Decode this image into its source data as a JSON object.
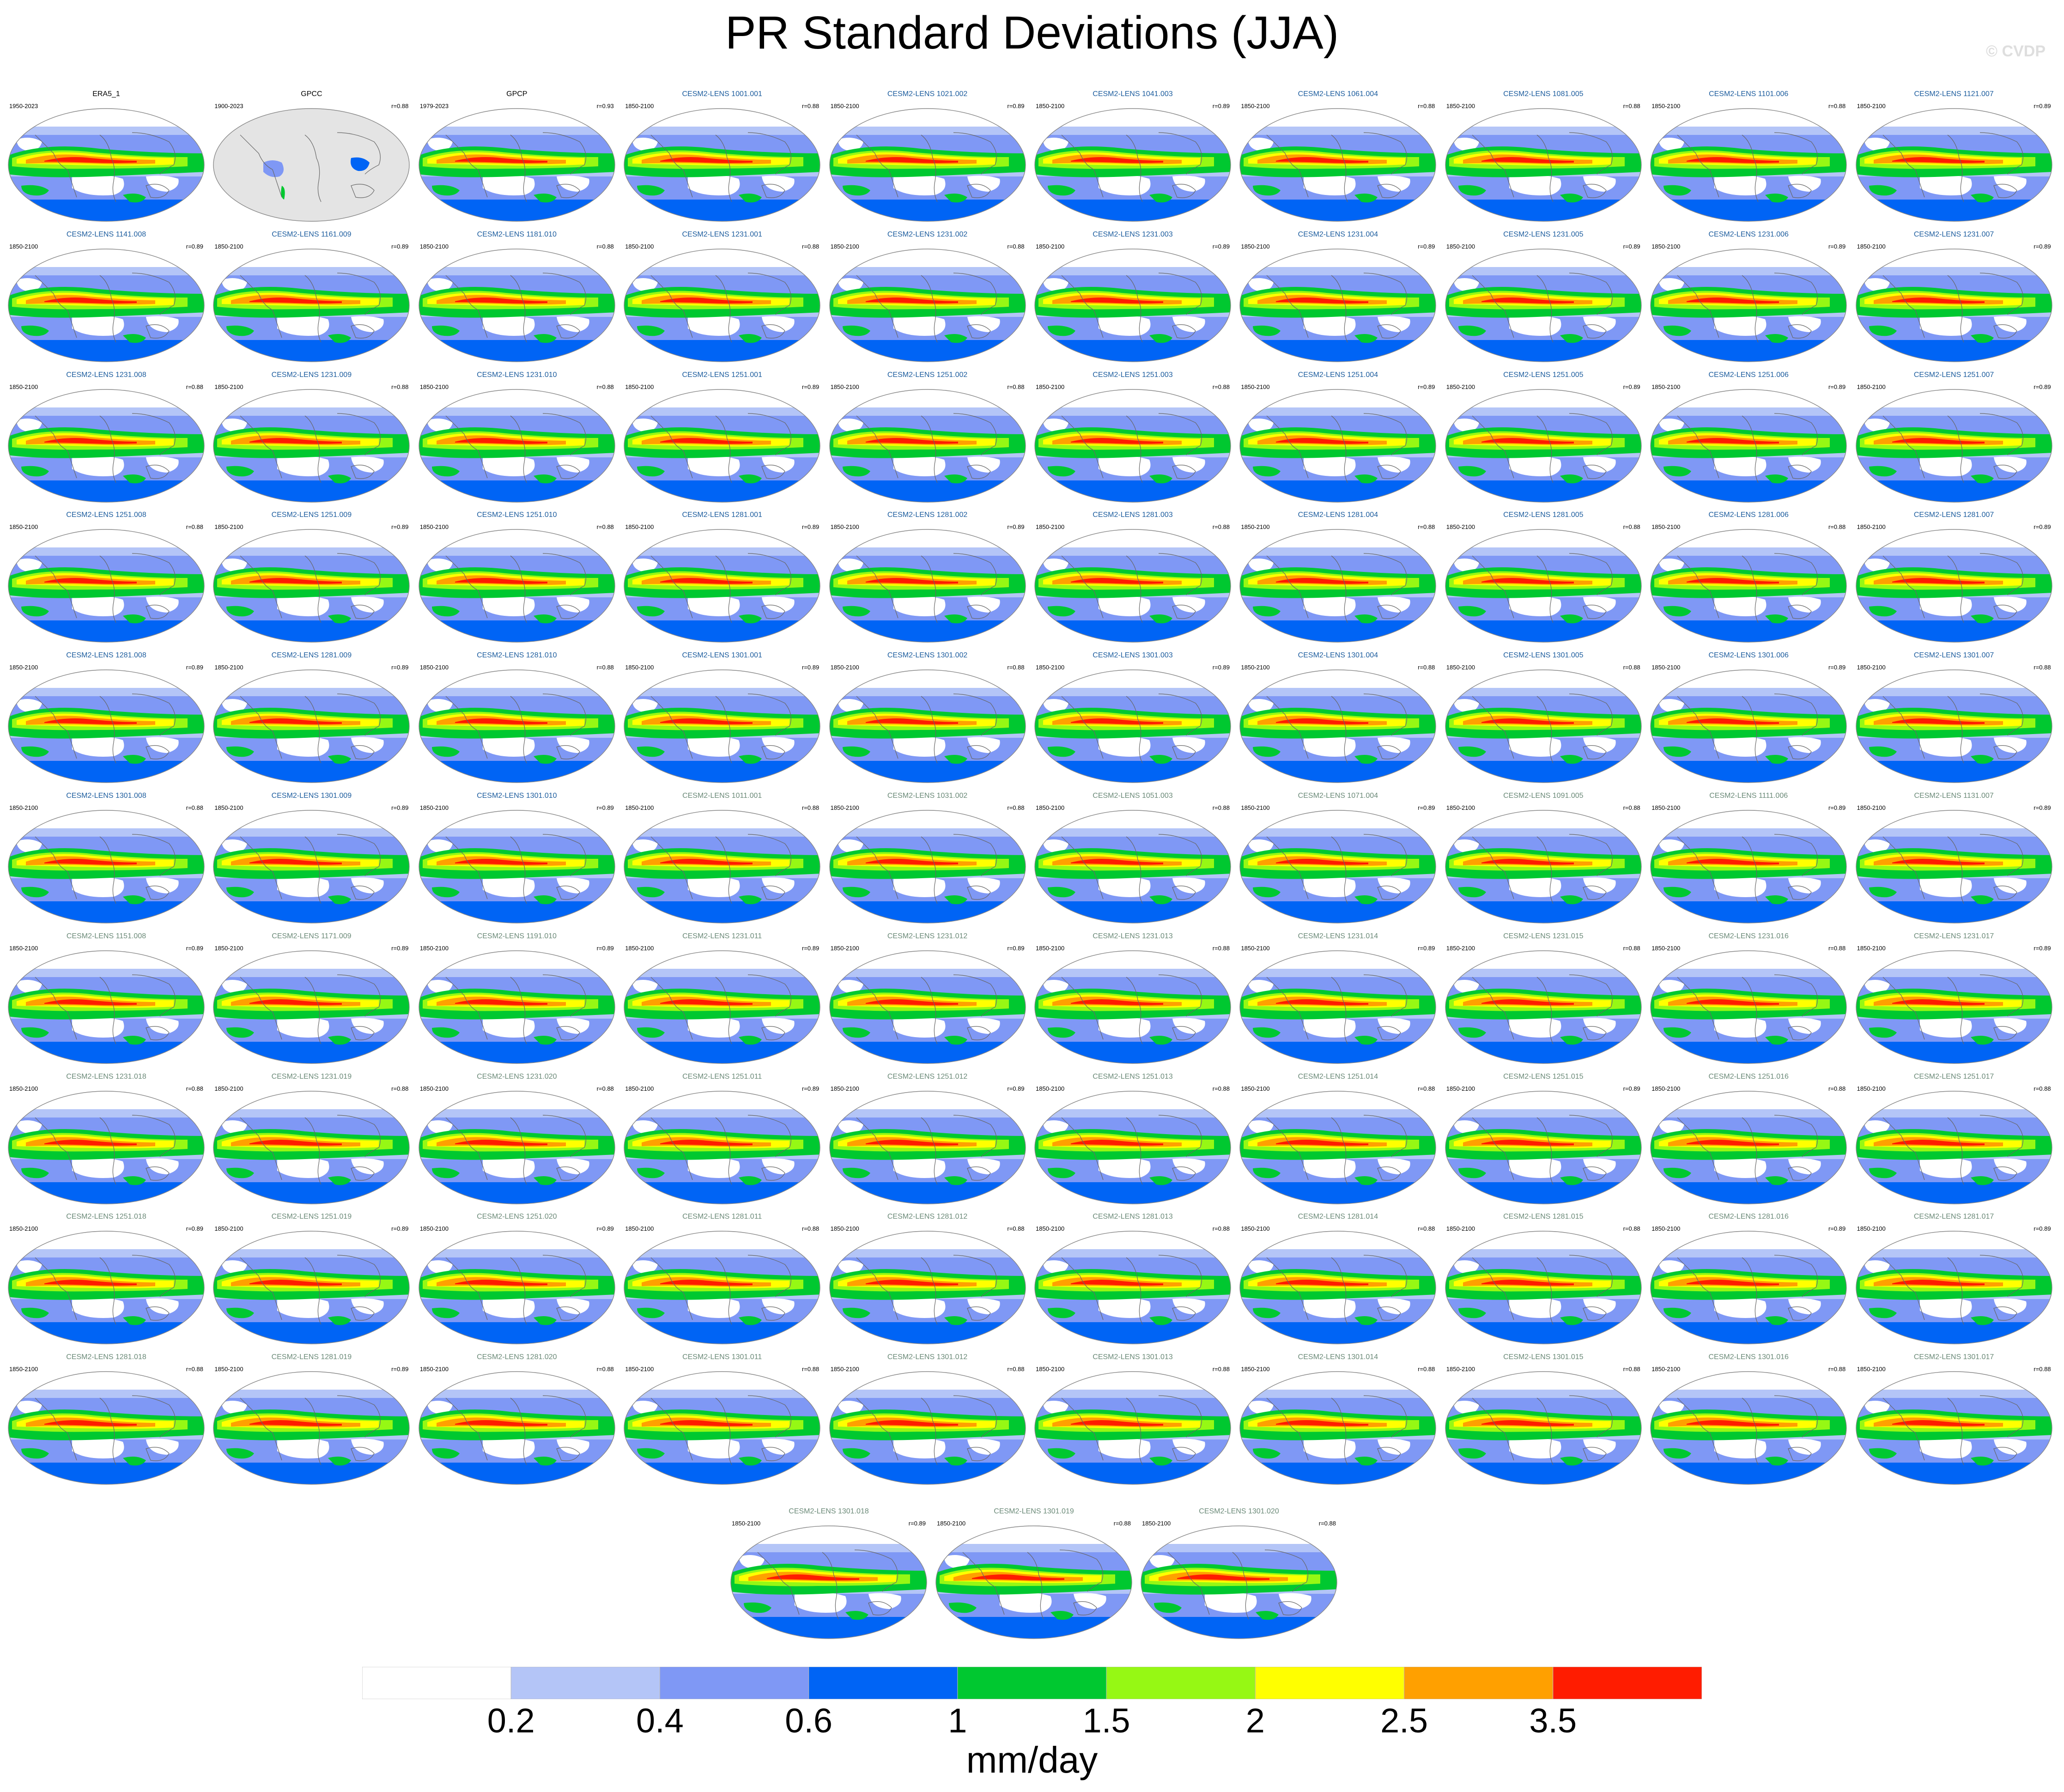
{
  "title": "PR Standard Deviations (JJA)",
  "credit": "© CVDP",
  "colors": {
    "ref_title": "#000000",
    "member_title_a": "#1d5d9e",
    "member_title_b": "#6b8a78"
  },
  "chart_data": {
    "type": "heatmap",
    "description_kind": "grid of global filled-contour maps",
    "map_projection": "Robinson",
    "columns": 10,
    "units": "mm/day",
    "contour_levels": [
      0.2,
      0.4,
      0.6,
      1,
      1.5,
      2,
      2.5,
      3.5
    ],
    "colorbar": {
      "tick_labels": [
        "0.2",
        "0.4",
        "0.6",
        "1",
        "1.5",
        "2",
        "2.5",
        "3.5"
      ],
      "colors": [
        "#ffffff",
        "#b4c5f7",
        "#7f98f5",
        "#0064f5",
        "#00c830",
        "#96f814",
        "#ffff00",
        "#ffa000",
        "#ff1c00"
      ],
      "label": "mm/day",
      "orientation": "horizontal"
    },
    "panels": [
      {
        "name": "ERA5_1",
        "period": "1950-2023",
        "r": "",
        "group": "ref"
      },
      {
        "name": "GPCC",
        "period": "1900-2023",
        "r": "r=0.88",
        "group": "ref",
        "land_only": true
      },
      {
        "name": "GPCP",
        "period": "1979-2023",
        "r": "r=0.93",
        "group": "ref"
      },
      {
        "name": "CESM2-LENS 1001.001",
        "period": "1850-2100",
        "r": "r=0.88",
        "group": "a"
      },
      {
        "name": "CESM2-LENS 1021.002",
        "period": "1850-2100",
        "r": "r=0.89",
        "group": "a"
      },
      {
        "name": "CESM2-LENS 1041.003",
        "period": "1850-2100",
        "r": "r=0.89",
        "group": "a"
      },
      {
        "name": "CESM2-LENS 1061.004",
        "period": "1850-2100",
        "r": "r=0.88",
        "group": "a"
      },
      {
        "name": "CESM2-LENS 1081.005",
        "period": "1850-2100",
        "r": "r=0.88",
        "group": "a"
      },
      {
        "name": "CESM2-LENS 1101.006",
        "period": "1850-2100",
        "r": "r=0.88",
        "group": "a"
      },
      {
        "name": "CESM2-LENS 1121.007",
        "period": "1850-2100",
        "r": "r=0.89",
        "group": "a"
      },
      {
        "name": "CESM2-LENS 1141.008",
        "period": "1850-2100",
        "r": "r=0.89",
        "group": "a"
      },
      {
        "name": "CESM2-LENS 1161.009",
        "period": "1850-2100",
        "r": "r=0.89",
        "group": "a"
      },
      {
        "name": "CESM2-LENS 1181.010",
        "period": "1850-2100",
        "r": "r=0.88",
        "group": "a"
      },
      {
        "name": "CESM2-LENS 1231.001",
        "period": "1850-2100",
        "r": "r=0.88",
        "group": "a"
      },
      {
        "name": "CESM2-LENS 1231.002",
        "period": "1850-2100",
        "r": "r=0.88",
        "group": "a"
      },
      {
        "name": "CESM2-LENS 1231.003",
        "period": "1850-2100",
        "r": "r=0.89",
        "group": "a"
      },
      {
        "name": "CESM2-LENS 1231.004",
        "period": "1850-2100",
        "r": "r=0.89",
        "group": "a"
      },
      {
        "name": "CESM2-LENS 1231.005",
        "period": "1850-2100",
        "r": "r=0.89",
        "group": "a"
      },
      {
        "name": "CESM2-LENS 1231.006",
        "period": "1850-2100",
        "r": "r=0.89",
        "group": "a"
      },
      {
        "name": "CESM2-LENS 1231.007",
        "period": "1850-2100",
        "r": "r=0.89",
        "group": "a"
      },
      {
        "name": "CESM2-LENS 1231.008",
        "period": "1850-2100",
        "r": "r=0.88",
        "group": "a"
      },
      {
        "name": "CESM2-LENS 1231.009",
        "period": "1850-2100",
        "r": "r=0.88",
        "group": "a"
      },
      {
        "name": "CESM2-LENS 1231.010",
        "period": "1850-2100",
        "r": "r=0.88",
        "group": "a"
      },
      {
        "name": "CESM2-LENS 1251.001",
        "period": "1850-2100",
        "r": "r=0.89",
        "group": "a"
      },
      {
        "name": "CESM2-LENS 1251.002",
        "period": "1850-2100",
        "r": "r=0.88",
        "group": "a"
      },
      {
        "name": "CESM2-LENS 1251.003",
        "period": "1850-2100",
        "r": "r=0.88",
        "group": "a"
      },
      {
        "name": "CESM2-LENS 1251.004",
        "period": "1850-2100",
        "r": "r=0.89",
        "group": "a"
      },
      {
        "name": "CESM2-LENS 1251.005",
        "period": "1850-2100",
        "r": "r=0.89",
        "group": "a"
      },
      {
        "name": "CESM2-LENS 1251.006",
        "period": "1850-2100",
        "r": "r=0.89",
        "group": "a"
      },
      {
        "name": "CESM2-LENS 1251.007",
        "period": "1850-2100",
        "r": "r=0.89",
        "group": "a"
      },
      {
        "name": "CESM2-LENS 1251.008",
        "period": "1850-2100",
        "r": "r=0.88",
        "group": "a"
      },
      {
        "name": "CESM2-LENS 1251.009",
        "period": "1850-2100",
        "r": "r=0.89",
        "group": "a"
      },
      {
        "name": "CESM2-LENS 1251.010",
        "period": "1850-2100",
        "r": "r=0.88",
        "group": "a"
      },
      {
        "name": "CESM2-LENS 1281.001",
        "period": "1850-2100",
        "r": "r=0.89",
        "group": "a"
      },
      {
        "name": "CESM2-LENS 1281.002",
        "period": "1850-2100",
        "r": "r=0.89",
        "group": "a"
      },
      {
        "name": "CESM2-LENS 1281.003",
        "period": "1850-2100",
        "r": "r=0.88",
        "group": "a"
      },
      {
        "name": "CESM2-LENS 1281.004",
        "period": "1850-2100",
        "r": "r=0.88",
        "group": "a"
      },
      {
        "name": "CESM2-LENS 1281.005",
        "period": "1850-2100",
        "r": "r=0.88",
        "group": "a"
      },
      {
        "name": "CESM2-LENS 1281.006",
        "period": "1850-2100",
        "r": "r=0.88",
        "group": "a"
      },
      {
        "name": "CESM2-LENS 1281.007",
        "period": "1850-2100",
        "r": "r=0.89",
        "group": "a"
      },
      {
        "name": "CESM2-LENS 1281.008",
        "period": "1850-2100",
        "r": "r=0.89",
        "group": "a"
      },
      {
        "name": "CESM2-LENS 1281.009",
        "period": "1850-2100",
        "r": "r=0.89",
        "group": "a"
      },
      {
        "name": "CESM2-LENS 1281.010",
        "period": "1850-2100",
        "r": "r=0.88",
        "group": "a"
      },
      {
        "name": "CESM2-LENS 1301.001",
        "period": "1850-2100",
        "r": "r=0.89",
        "group": "a"
      },
      {
        "name": "CESM2-LENS 1301.002",
        "period": "1850-2100",
        "r": "r=0.88",
        "group": "a"
      },
      {
        "name": "CESM2-LENS 1301.003",
        "period": "1850-2100",
        "r": "r=0.89",
        "group": "a"
      },
      {
        "name": "CESM2-LENS 1301.004",
        "period": "1850-2100",
        "r": "r=0.88",
        "group": "a"
      },
      {
        "name": "CESM2-LENS 1301.005",
        "period": "1850-2100",
        "r": "r=0.88",
        "group": "a"
      },
      {
        "name": "CESM2-LENS 1301.006",
        "period": "1850-2100",
        "r": "r=0.89",
        "group": "a"
      },
      {
        "name": "CESM2-LENS 1301.007",
        "period": "1850-2100",
        "r": "r=0.88",
        "group": "a"
      },
      {
        "name": "CESM2-LENS 1301.008",
        "period": "1850-2100",
        "r": "r=0.88",
        "group": "a"
      },
      {
        "name": "CESM2-LENS 1301.009",
        "period": "1850-2100",
        "r": "r=0.89",
        "group": "a"
      },
      {
        "name": "CESM2-LENS 1301.010",
        "period": "1850-2100",
        "r": "r=0.89",
        "group": "a"
      },
      {
        "name": "CESM2-LENS 1011.001",
        "period": "1850-2100",
        "r": "r=0.88",
        "group": "b"
      },
      {
        "name": "CESM2-LENS 1031.002",
        "period": "1850-2100",
        "r": "r=0.88",
        "group": "b"
      },
      {
        "name": "CESM2-LENS 1051.003",
        "period": "1850-2100",
        "r": "r=0.88",
        "group": "b"
      },
      {
        "name": "CESM2-LENS 1071.004",
        "period": "1850-2100",
        "r": "r=0.89",
        "group": "b"
      },
      {
        "name": "CESM2-LENS 1091.005",
        "period": "1850-2100",
        "r": "r=0.88",
        "group": "b"
      },
      {
        "name": "CESM2-LENS 1111.006",
        "period": "1850-2100",
        "r": "r=0.89",
        "group": "b"
      },
      {
        "name": "CESM2-LENS 1131.007",
        "period": "1850-2100",
        "r": "r=0.89",
        "group": "b"
      },
      {
        "name": "CESM2-LENS 1151.008",
        "period": "1850-2100",
        "r": "r=0.89",
        "group": "b"
      },
      {
        "name": "CESM2-LENS 1171.009",
        "period": "1850-2100",
        "r": "r=0.89",
        "group": "b"
      },
      {
        "name": "CESM2-LENS 1191.010",
        "period": "1850-2100",
        "r": "r=0.89",
        "group": "b"
      },
      {
        "name": "CESM2-LENS 1231.011",
        "period": "1850-2100",
        "r": "r=0.89",
        "group": "b"
      },
      {
        "name": "CESM2-LENS 1231.012",
        "period": "1850-2100",
        "r": "r=0.89",
        "group": "b"
      },
      {
        "name": "CESM2-LENS 1231.013",
        "period": "1850-2100",
        "r": "r=0.88",
        "group": "b"
      },
      {
        "name": "CESM2-LENS 1231.014",
        "period": "1850-2100",
        "r": "r=0.89",
        "group": "b"
      },
      {
        "name": "CESM2-LENS 1231.015",
        "period": "1850-2100",
        "r": "r=0.88",
        "group": "b"
      },
      {
        "name": "CESM2-LENS 1231.016",
        "period": "1850-2100",
        "r": "r=0.88",
        "group": "b"
      },
      {
        "name": "CESM2-LENS 1231.017",
        "period": "1850-2100",
        "r": "r=0.89",
        "group": "b"
      },
      {
        "name": "CESM2-LENS 1231.018",
        "period": "1850-2100",
        "r": "r=0.88",
        "group": "b"
      },
      {
        "name": "CESM2-LENS 1231.019",
        "period": "1850-2100",
        "r": "r=0.88",
        "group": "b"
      },
      {
        "name": "CESM2-LENS 1231.020",
        "period": "1850-2100",
        "r": "r=0.88",
        "group": "b"
      },
      {
        "name": "CESM2-LENS 1251.011",
        "period": "1850-2100",
        "r": "r=0.89",
        "group": "b"
      },
      {
        "name": "CESM2-LENS 1251.012",
        "period": "1850-2100",
        "r": "r=0.89",
        "group": "b"
      },
      {
        "name": "CESM2-LENS 1251.013",
        "period": "1850-2100",
        "r": "r=0.88",
        "group": "b"
      },
      {
        "name": "CESM2-LENS 1251.014",
        "period": "1850-2100",
        "r": "r=0.88",
        "group": "b"
      },
      {
        "name": "CESM2-LENS 1251.015",
        "period": "1850-2100",
        "r": "r=0.89",
        "group": "b"
      },
      {
        "name": "CESM2-LENS 1251.016",
        "period": "1850-2100",
        "r": "r=0.88",
        "group": "b"
      },
      {
        "name": "CESM2-LENS 1251.017",
        "period": "1850-2100",
        "r": "r=0.88",
        "group": "b"
      },
      {
        "name": "CESM2-LENS 1251.018",
        "period": "1850-2100",
        "r": "r=0.89",
        "group": "b"
      },
      {
        "name": "CESM2-LENS 1251.019",
        "period": "1850-2100",
        "r": "r=0.89",
        "group": "b"
      },
      {
        "name": "CESM2-LENS 1251.020",
        "period": "1850-2100",
        "r": "r=0.89",
        "group": "b"
      },
      {
        "name": "CESM2-LENS 1281.011",
        "period": "1850-2100",
        "r": "r=0.88",
        "group": "b"
      },
      {
        "name": "CESM2-LENS 1281.012",
        "period": "1850-2100",
        "r": "r=0.88",
        "group": "b"
      },
      {
        "name": "CESM2-LENS 1281.013",
        "period": "1850-2100",
        "r": "r=0.88",
        "group": "b"
      },
      {
        "name": "CESM2-LENS 1281.014",
        "period": "1850-2100",
        "r": "r=0.88",
        "group": "b"
      },
      {
        "name": "CESM2-LENS 1281.015",
        "period": "1850-2100",
        "r": "r=0.88",
        "group": "b"
      },
      {
        "name": "CESM2-LENS 1281.016",
        "period": "1850-2100",
        "r": "r=0.89",
        "group": "b"
      },
      {
        "name": "CESM2-LENS 1281.017",
        "period": "1850-2100",
        "r": "r=0.89",
        "group": "b"
      },
      {
        "name": "CESM2-LENS 1281.018",
        "period": "1850-2100",
        "r": "r=0.88",
        "group": "b"
      },
      {
        "name": "CESM2-LENS 1281.019",
        "period": "1850-2100",
        "r": "r=0.89",
        "group": "b"
      },
      {
        "name": "CESM2-LENS 1281.020",
        "period": "1850-2100",
        "r": "r=0.88",
        "group": "b"
      },
      {
        "name": "CESM2-LENS 1301.011",
        "period": "1850-2100",
        "r": "r=0.88",
        "group": "b"
      },
      {
        "name": "CESM2-LENS 1301.012",
        "period": "1850-2100",
        "r": "r=0.88",
        "group": "b"
      },
      {
        "name": "CESM2-LENS 1301.013",
        "period": "1850-2100",
        "r": "r=0.88",
        "group": "b"
      },
      {
        "name": "CESM2-LENS 1301.014",
        "period": "1850-2100",
        "r": "r=0.88",
        "group": "b"
      },
      {
        "name": "CESM2-LENS 1301.015",
        "period": "1850-2100",
        "r": "r=0.88",
        "group": "b"
      },
      {
        "name": "CESM2-LENS 1301.016",
        "period": "1850-2100",
        "r": "r=0.88",
        "group": "b"
      },
      {
        "name": "CESM2-LENS 1301.017",
        "period": "1850-2100",
        "r": "r=0.88",
        "group": "b"
      },
      {
        "name": "CESM2-LENS 1301.018",
        "period": "1850-2100",
        "r": "r=0.89",
        "group": "b"
      },
      {
        "name": "CESM2-LENS 1301.019",
        "period": "1850-2100",
        "r": "r=0.88",
        "group": "b"
      },
      {
        "name": "CESM2-LENS 1301.020",
        "period": "1850-2100",
        "r": "r=0.88",
        "group": "b"
      }
    ]
  }
}
